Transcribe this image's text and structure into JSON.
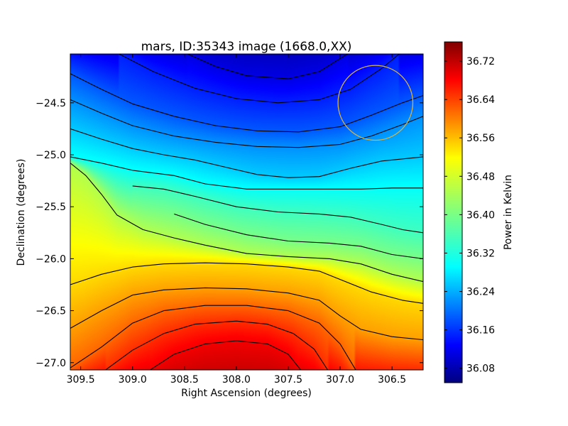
{
  "chart_data": {
    "type": "heatmap",
    "title": "mars, ID:35343 image (1668.0,XX)",
    "xlabel": "Right Ascension (degrees)",
    "ylabel": "Declination (degrees)",
    "colorbar_label": "Power in Kelvin",
    "colormap": "jet",
    "xlim": [
      309.6,
      306.2
    ],
    "ylim": [
      -27.07,
      -24.03
    ],
    "x_reversed": true,
    "xticks": [
      {
        "value": 309.5,
        "label": "309.5"
      },
      {
        "value": 309.0,
        "label": "309.0"
      },
      {
        "value": 308.5,
        "label": "308.5"
      },
      {
        "value": 308.0,
        "label": "308.0"
      },
      {
        "value": 307.5,
        "label": "307.5"
      },
      {
        "value": 307.0,
        "label": "307.0"
      },
      {
        "value": 306.5,
        "label": "306.5"
      }
    ],
    "yticks": [
      {
        "value": -24.5,
        "label": "−24.5"
      },
      {
        "value": -25.0,
        "label": "−25.0"
      },
      {
        "value": -25.5,
        "label": "−25.5"
      },
      {
        "value": -26.0,
        "label": "−26.0"
      },
      {
        "value": -26.5,
        "label": "−26.5"
      },
      {
        "value": -27.0,
        "label": "−27.0"
      }
    ],
    "colorbar_range": [
      36.05,
      36.76
    ],
    "colorbar_ticks": [
      {
        "value": 36.08,
        "label": "36.08"
      },
      {
        "value": 36.16,
        "label": "36.16"
      },
      {
        "value": 36.24,
        "label": "36.24"
      },
      {
        "value": 36.32,
        "label": "36.32"
      },
      {
        "value": 36.4,
        "label": "36.40"
      },
      {
        "value": 36.48,
        "label": "36.48"
      },
      {
        "value": 36.56,
        "label": "36.56"
      },
      {
        "value": 36.64,
        "label": "36.64"
      },
      {
        "value": 36.72,
        "label": "36.72"
      }
    ],
    "contour_lines": [
      {
        "level": 36.12,
        "points": [
          [
            308.47,
            -24.03
          ],
          [
            308.2,
            -24.15
          ],
          [
            307.9,
            -24.24
          ],
          [
            307.5,
            -24.27
          ],
          [
            307.2,
            -24.2
          ],
          [
            306.93,
            -24.03
          ]
        ]
      },
      {
        "level": 36.16,
        "points": [
          [
            309.13,
            -24.03
          ],
          [
            308.8,
            -24.2
          ],
          [
            308.4,
            -24.36
          ],
          [
            308.0,
            -24.46
          ],
          [
            307.6,
            -24.5
          ],
          [
            307.2,
            -24.47
          ],
          [
            306.9,
            -24.37
          ],
          [
            306.6,
            -24.17
          ],
          [
            306.43,
            -24.03
          ]
        ]
      },
      {
        "level": 36.2,
        "points": [
          [
            309.6,
            -24.22
          ],
          [
            309.3,
            -24.37
          ],
          [
            309.0,
            -24.51
          ],
          [
            308.6,
            -24.63
          ],
          [
            308.2,
            -24.72
          ],
          [
            307.8,
            -24.77
          ],
          [
            307.4,
            -24.78
          ],
          [
            307.0,
            -24.73
          ],
          [
            306.7,
            -24.62
          ],
          [
            306.4,
            -24.5
          ],
          [
            306.2,
            -24.43
          ]
        ]
      },
      {
        "level": 36.24,
        "points": [
          [
            309.6,
            -24.47
          ],
          [
            309.3,
            -24.6
          ],
          [
            309.0,
            -24.72
          ],
          [
            308.6,
            -24.82
          ],
          [
            308.2,
            -24.88
          ],
          [
            307.8,
            -24.92
          ],
          [
            307.4,
            -24.93
          ],
          [
            307.0,
            -24.9
          ],
          [
            306.7,
            -24.82
          ],
          [
            306.4,
            -24.71
          ],
          [
            306.2,
            -24.63
          ]
        ]
      },
      {
        "level": 36.28,
        "points": [
          [
            309.6,
            -24.75
          ],
          [
            309.3,
            -24.85
          ],
          [
            309.0,
            -24.94
          ],
          [
            308.7,
            -25.0
          ],
          [
            308.4,
            -25.05
          ],
          [
            308.1,
            -25.12
          ],
          [
            307.8,
            -25.19
          ],
          [
            307.5,
            -25.22
          ],
          [
            307.2,
            -25.21
          ],
          [
            306.9,
            -25.13
          ],
          [
            306.6,
            -25.06
          ],
          [
            306.2,
            -25.02
          ]
        ]
      },
      {
        "level": 36.32,
        "points": [
          [
            309.6,
            -25.02
          ],
          [
            309.3,
            -25.08
          ],
          [
            309.0,
            -25.15
          ],
          [
            308.6,
            -25.2
          ],
          [
            308.3,
            -25.28
          ],
          [
            307.9,
            -25.33
          ],
          [
            307.6,
            -25.33
          ],
          [
            307.2,
            -25.33
          ],
          [
            306.8,
            -25.33
          ],
          [
            306.5,
            -25.32
          ],
          [
            306.2,
            -25.32
          ]
        ]
      },
      {
        "level": 36.36,
        "points": [
          [
            309.0,
            -25.3
          ],
          [
            308.7,
            -25.33
          ],
          [
            308.4,
            -25.4
          ],
          [
            308.0,
            -25.5
          ],
          [
            307.6,
            -25.55
          ],
          [
            307.2,
            -25.57
          ],
          [
            306.9,
            -25.6
          ],
          [
            306.6,
            -25.67
          ],
          [
            306.4,
            -25.72
          ],
          [
            306.2,
            -25.75
          ]
        ]
      },
      {
        "level": 36.4,
        "points": [
          [
            308.6,
            -25.57
          ],
          [
            308.3,
            -25.67
          ],
          [
            307.9,
            -25.77
          ],
          [
            307.5,
            -25.83
          ],
          [
            307.1,
            -25.85
          ],
          [
            306.8,
            -25.88
          ],
          [
            306.5,
            -25.96
          ],
          [
            306.2,
            -26.0
          ]
        ]
      },
      {
        "level": 36.44,
        "points": [
          [
            309.6,
            -25.08
          ],
          [
            309.45,
            -25.2
          ],
          [
            309.3,
            -25.38
          ],
          [
            309.15,
            -25.58
          ],
          [
            308.9,
            -25.72
          ],
          [
            308.6,
            -25.8
          ],
          [
            308.3,
            -25.87
          ],
          [
            307.9,
            -25.95
          ],
          [
            307.5,
            -25.98
          ],
          [
            307.1,
            -26.0
          ],
          [
            306.8,
            -26.05
          ],
          [
            306.5,
            -26.15
          ],
          [
            306.2,
            -26.22
          ]
        ]
      },
      {
        "level": 36.52,
        "points": [
          [
            309.6,
            -26.25
          ],
          [
            309.3,
            -26.15
          ],
          [
            309.0,
            -26.08
          ],
          [
            308.7,
            -26.05
          ],
          [
            308.3,
            -26.04
          ],
          [
            307.9,
            -26.05
          ],
          [
            307.5,
            -26.08
          ],
          [
            307.2,
            -26.12
          ],
          [
            307.0,
            -26.2
          ],
          [
            306.7,
            -26.32
          ],
          [
            306.4,
            -26.4
          ],
          [
            306.2,
            -26.43
          ]
        ]
      },
      {
        "level": 36.56,
        "points": [
          [
            309.6,
            -26.67
          ],
          [
            309.3,
            -26.5
          ],
          [
            309.0,
            -26.35
          ],
          [
            308.7,
            -26.3
          ],
          [
            308.3,
            -26.28
          ],
          [
            307.9,
            -26.29
          ],
          [
            307.5,
            -26.33
          ],
          [
            307.2,
            -26.4
          ],
          [
            307.0,
            -26.55
          ],
          [
            306.8,
            -26.68
          ],
          [
            306.5,
            -26.75
          ],
          [
            306.2,
            -26.78
          ]
        ]
      },
      {
        "level": 36.6,
        "points": [
          [
            309.6,
            -27.05
          ],
          [
            309.3,
            -26.85
          ],
          [
            309.0,
            -26.62
          ],
          [
            308.7,
            -26.5
          ],
          [
            308.3,
            -26.45
          ],
          [
            307.9,
            -26.45
          ],
          [
            307.5,
            -26.5
          ],
          [
            307.2,
            -26.62
          ],
          [
            307.0,
            -26.82
          ],
          [
            306.85,
            -27.07
          ]
        ]
      },
      {
        "level": 36.64,
        "points": [
          [
            309.26,
            -27.07
          ],
          [
            309.0,
            -26.88
          ],
          [
            308.7,
            -26.72
          ],
          [
            308.4,
            -26.63
          ],
          [
            308.0,
            -26.6
          ],
          [
            307.7,
            -26.63
          ],
          [
            307.45,
            -26.72
          ],
          [
            307.25,
            -26.87
          ],
          [
            307.12,
            -27.07
          ]
        ]
      },
      {
        "level": 36.68,
        "points": [
          [
            308.83,
            -27.07
          ],
          [
            308.6,
            -26.92
          ],
          [
            308.3,
            -26.82
          ],
          [
            308.0,
            -26.79
          ],
          [
            307.7,
            -26.82
          ],
          [
            307.5,
            -26.92
          ],
          [
            307.38,
            -27.07
          ]
        ]
      }
    ],
    "beam_marker": {
      "shape": "circle",
      "center": [
        306.66,
        -24.5
      ],
      "radius_deg": 0.36,
      "color": "#d4b44a"
    }
  }
}
